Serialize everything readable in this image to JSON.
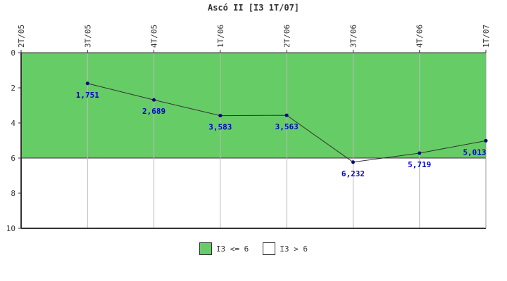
{
  "chart_data": {
    "type": "line",
    "title": "Ascó II [I3 1T/07]",
    "categories": [
      "2T/05",
      "3T/05",
      "4T/05",
      "1T/06",
      "2T/06",
      "3T/06",
      "4T/06",
      "1T/07"
    ],
    "series": [
      {
        "values": [
          null,
          1.751,
          2.689,
          3.583,
          3.563,
          6.232,
          5.719,
          5.013
        ],
        "labels": [
          "",
          "1,751",
          "2,689",
          "3,583",
          "3,563",
          "6,232",
          "5,719",
          "5,013"
        ],
        "color": "#000080"
      }
    ],
    "ylim": [
      0,
      10
    ],
    "yticks": [
      "0",
      "2",
      "4",
      "6",
      "8",
      "10"
    ],
    "y_inverted": true,
    "threshold": 6,
    "bands": [
      {
        "label": "I3 <= 6",
        "color": "#66cc66"
      },
      {
        "label": "I3 > 6",
        "color": "#ffffff"
      }
    ],
    "legend_position": "bottom-center"
  }
}
